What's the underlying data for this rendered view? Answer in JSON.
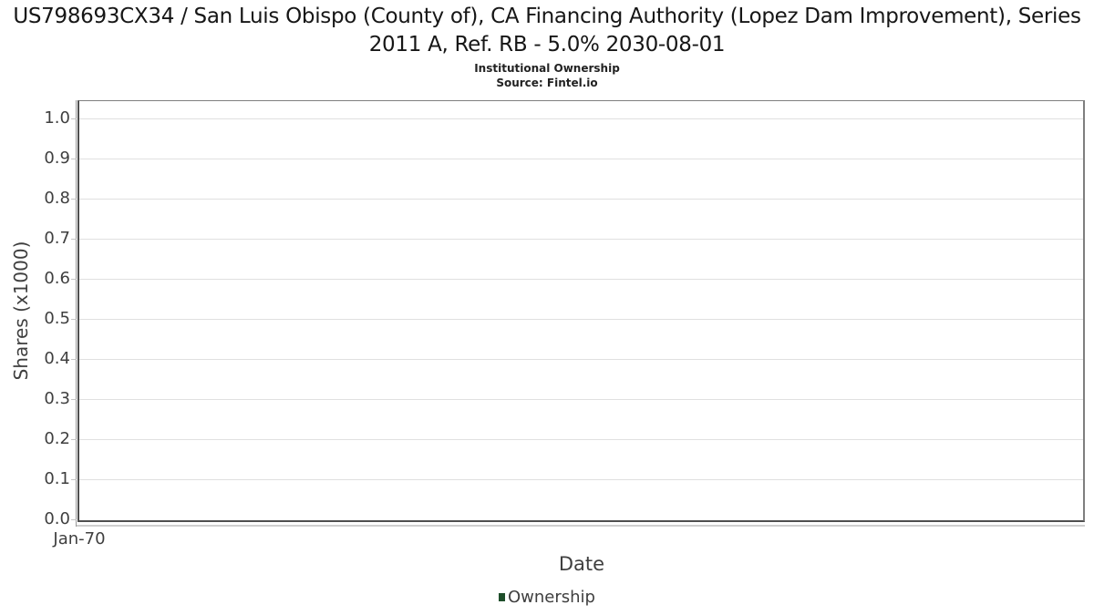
{
  "header": {
    "title": "US798693CX34 / San Luis Obispo (County of), CA Financing Authority (Lopez Dam Improvement), Series 2011 A, Ref. RB - 5.0% 2030-08-01",
    "subtitle": "Institutional Ownership",
    "source": "Source: Fintel.io"
  },
  "chart_data": {
    "type": "line",
    "title": "US798693CX34 / San Luis Obispo (County of), CA Financing Authority (Lopez Dam Improvement), Series 2011 A, Ref. RB - 5.0% 2030-08-01",
    "subtitle": "Institutional Ownership",
    "source": "Source: Fintel.io",
    "xlabel": "Date",
    "ylabel": "Shares (x1000)",
    "x_tick_labels": [
      "Jan-70"
    ],
    "y_tick_labels": [
      "0.0",
      "0.1",
      "0.2",
      "0.3",
      "0.4",
      "0.5",
      "0.6",
      "0.7",
      "0.8",
      "0.9",
      "1.0"
    ],
    "ylim": [
      0.0,
      1.045
    ],
    "grid": true,
    "legend_position": "bottom-center",
    "series": [
      {
        "name": "Ownership",
        "color": "#1e4e2a",
        "x": [],
        "values": []
      }
    ]
  },
  "legend": {
    "items": [
      {
        "label": "Ownership",
        "color": "#1e4e2a"
      }
    ]
  },
  "colors": {
    "grid": "#e0e0e0",
    "axis_dark": "#4f4f4f",
    "axis_light": "#9a9a9a",
    "tick_text": "#3f3f3f",
    "title_text": "#161616"
  }
}
